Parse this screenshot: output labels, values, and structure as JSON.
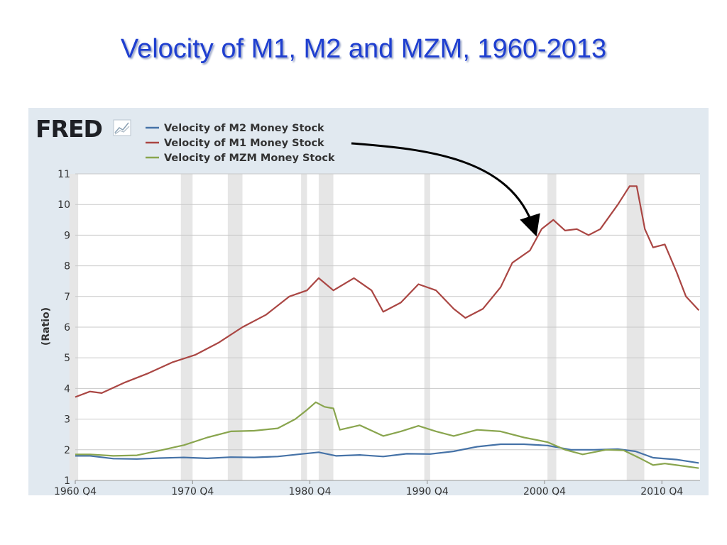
{
  "slide": {
    "title": "Velocity of M1, M2 and MZM, 1960-2013"
  },
  "chart_data": {
    "type": "line",
    "brand": "FRED",
    "ylabel": "(Ratio)",
    "ylim": [
      1,
      11
    ],
    "xlim": [
      1960.75,
      2014.0
    ],
    "yticks": [
      "1",
      "2",
      "3",
      "4",
      "5",
      "6",
      "7",
      "8",
      "9",
      "10",
      "11"
    ],
    "xticks": [
      {
        "label": "1960 Q4",
        "value": 1960.75
      },
      {
        "label": "1970 Q4",
        "value": 1970.75
      },
      {
        "label": "1980 Q4",
        "value": 1980.75
      },
      {
        "label": "1990 Q4",
        "value": 1990.75
      },
      {
        "label": "2000 Q4",
        "value": 2000.75
      },
      {
        "label": "2010 Q4",
        "value": 2010.75
      }
    ],
    "grid": true,
    "legend_position": "top-left",
    "recessions": [
      [
        1960.25,
        1961.0
      ],
      [
        1969.75,
        1970.75
      ],
      [
        1973.75,
        1975.0
      ],
      [
        1980.0,
        1980.5
      ],
      [
        1981.5,
        1982.75
      ],
      [
        1990.5,
        1991.0
      ],
      [
        2001.0,
        2001.75
      ],
      [
        2007.75,
        2009.25
      ]
    ],
    "annotation": "arrow from M1 legend entry to M1 series near 2000",
    "series": [
      {
        "name": "Velocity of M2 Money Stock",
        "color": "#4572a7",
        "x": [
          1960.75,
          1962,
          1964,
          1966,
          1968,
          1970,
          1972,
          1974,
          1976,
          1978,
          1980,
          1981.5,
          1983,
          1985,
          1987,
          1989,
          1991,
          1993,
          1995,
          1997,
          1999,
          2001,
          2003,
          2005,
          2007,
          2008.5,
          2010,
          2012,
          2013.9
        ],
        "y": [
          1.8,
          1.8,
          1.71,
          1.7,
          1.73,
          1.75,
          1.72,
          1.76,
          1.75,
          1.78,
          1.86,
          1.92,
          1.8,
          1.83,
          1.78,
          1.87,
          1.86,
          1.95,
          2.1,
          2.18,
          2.18,
          2.14,
          2.0,
          2.0,
          2.02,
          1.95,
          1.74,
          1.68,
          1.57
        ]
      },
      {
        "name": "Velocity of M1 Money Stock",
        "color": "#aa4643",
        "x": [
          1960.75,
          1962,
          1963,
          1965,
          1967,
          1969,
          1971,
          1973,
          1975,
          1977,
          1979,
          1980.5,
          1981.5,
          1982.75,
          1984.5,
          1986,
          1987,
          1988.5,
          1990,
          1991.5,
          1993,
          1994,
          1995.5,
          1997,
          1998,
          1999.5,
          2000.5,
          2001.5,
          2002.5,
          2003.5,
          2004.5,
          2005.5,
          2007,
          2008,
          2008.6,
          2009.3,
          2010,
          2011,
          2012,
          2012.8,
          2013.9
        ],
        "y": [
          3.72,
          3.9,
          3.85,
          4.2,
          4.5,
          4.85,
          5.1,
          5.5,
          6.0,
          6.4,
          7.0,
          7.2,
          7.6,
          7.2,
          7.6,
          7.2,
          6.5,
          6.8,
          7.4,
          7.2,
          6.6,
          6.3,
          6.6,
          7.3,
          8.1,
          8.5,
          9.2,
          9.5,
          9.15,
          9.2,
          9.0,
          9.2,
          10.0,
          10.6,
          10.6,
          9.2,
          8.6,
          8.7,
          7.8,
          7.0,
          6.55
        ]
      },
      {
        "name": "Velocity of MZM Money Stock",
        "color": "#89a54e",
        "x": [
          1960.75,
          1962,
          1964,
          1966,
          1968,
          1970,
          1972,
          1974,
          1976,
          1978,
          1979.5,
          1980.5,
          1981.25,
          1982,
          1982.75,
          1983.3,
          1985,
          1987,
          1988.5,
          1990,
          1991.5,
          1993,
          1995,
          1997,
          1999,
          2001,
          2002.5,
          2004,
          2006,
          2007.5,
          2009,
          2010,
          2011,
          2012,
          2013.9
        ],
        "y": [
          1.85,
          1.85,
          1.8,
          1.82,
          1.98,
          2.15,
          2.4,
          2.6,
          2.62,
          2.7,
          3.0,
          3.3,
          3.55,
          3.4,
          3.35,
          2.65,
          2.8,
          2.45,
          2.6,
          2.78,
          2.6,
          2.45,
          2.65,
          2.6,
          2.4,
          2.25,
          2.0,
          1.85,
          2.0,
          1.98,
          1.7,
          1.5,
          1.55,
          1.5,
          1.4
        ]
      }
    ]
  }
}
